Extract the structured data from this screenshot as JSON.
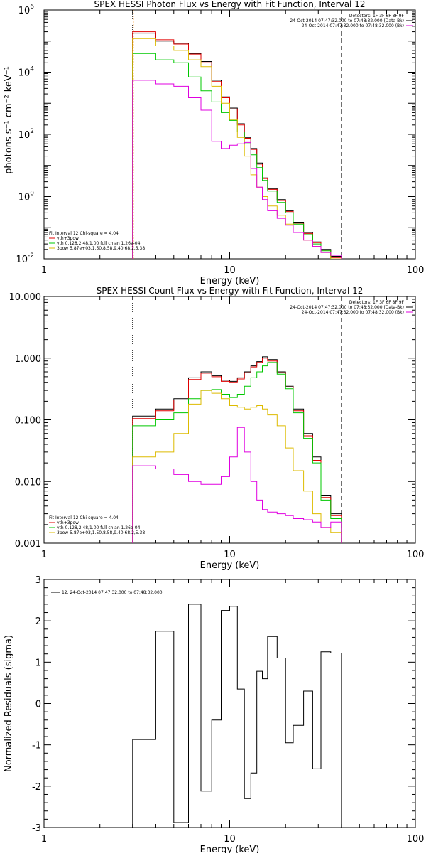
{
  "chart_data": [
    {
      "type": "line",
      "title": "SPEX HESSI Photon Flux vs Energy with Fit Function, Interval 12",
      "xlabel": "Energy (keV)",
      "ylabel": "photons s⁻¹ cm⁻² keV⁻¹",
      "xscale": "log",
      "yscale": "log",
      "xlim": [
        1,
        100
      ],
      "ylim": [
        0.01,
        1000000
      ],
      "xticks": [
        {
          "v": 1,
          "label": "1"
        },
        {
          "v": 10,
          "label": "10"
        },
        {
          "v": 100,
          "label": "100"
        }
      ],
      "yticks": [
        {
          "v": 0.01,
          "base": "10",
          "exp": "-2"
        },
        {
          "v": 1,
          "base": "10",
          "exp": "0"
        },
        {
          "v": 100,
          "base": "10",
          "exp": "2"
        },
        {
          "v": 10000,
          "base": "10",
          "exp": "4"
        },
        {
          "v": 1000000,
          "base": "10",
          "exp": "6"
        }
      ],
      "vlines": [
        {
          "x": 3,
          "style": "dotted"
        },
        {
          "x": 3,
          "style": "orange"
        },
        {
          "x": 40,
          "style": "dashed"
        }
      ],
      "legend_top": [
        "Detectors: 1F 3F 6F 8F 9F",
        "24-Oct-2014 07:47:32.000 to 07:48:32.000 (Data-Bk)",
        "24-Oct-2014 07:47:32.000 to 07:48:32.000 (Bk)"
      ],
      "legend_bottom": [
        "Fit Interval 12   Chi-square = 4.04",
        "vth+3pow",
        "vth 0.128,2.48,1.00  full chian 1.26e-04",
        "3pow  5.87e+03,1.50,8.58,9.40,68.2,5.38"
      ],
      "edges": [
        3,
        4,
        5,
        6,
        7,
        8,
        9,
        10,
        11,
        12,
        13,
        14,
        15,
        16,
        18,
        20,
        22,
        25,
        28,
        31,
        35,
        40
      ],
      "series": [
        {
          "name": "Data-Bk",
          "color": "#000000",
          "values": [
            180000,
            100000,
            85000,
            40000,
            22000,
            5500,
            1600,
            700,
            220,
            80,
            35,
            12,
            4,
            1.8,
            0.8,
            0.35,
            0.15,
            0.07,
            0.035,
            0.02,
            0.012
          ]
        },
        {
          "name": "vth+3pow",
          "color": "#e00000",
          "values": [
            200000,
            110000,
            80000,
            38000,
            20000,
            5000,
            1500,
            650,
            200,
            75,
            33,
            11,
            3.8,
            1.7,
            0.75,
            0.33,
            0.14,
            0.065,
            0.033,
            0.019,
            0.011
          ]
        },
        {
          "name": "vth",
          "color": "#00c800",
          "values": [
            40000,
            25000,
            20000,
            7000,
            2500,
            1100,
            500,
            280,
            120,
            50,
            22,
            8.5,
            3.3,
            1.5,
            0.65,
            0.3,
            0.13,
            0.06,
            0.03,
            0.018,
            0.01
          ]
        },
        {
          "name": "3pow",
          "color": "#ddbb00",
          "values": [
            120000,
            70000,
            50000,
            25000,
            15000,
            3500,
            1000,
            300,
            80,
            20,
            5,
            2,
            1,
            0.5,
            0.25,
            0.13,
            0.07,
            0.04,
            0.025,
            0.016,
            0.01
          ]
        },
        {
          "name": "Bk",
          "color": "#e000e0",
          "values": [
            5500,
            4200,
            3500,
            1500,
            600,
            60,
            35,
            45,
            50,
            55,
            8,
            2,
            0.8,
            0.35,
            0.2,
            0.12,
            0.07,
            0.04,
            0.025,
            0.016,
            0.013
          ]
        }
      ]
    },
    {
      "type": "line",
      "title": "SPEX HESSI Count Flux vs Energy with Fit Function, Interval 12",
      "xlabel": "Energy (keV)",
      "ylabel": "",
      "xscale": "log",
      "yscale": "log",
      "xlim": [
        1,
        100
      ],
      "ylim": [
        0.001,
        10
      ],
      "xticks": [
        {
          "v": 1,
          "label": "1"
        },
        {
          "v": 10,
          "label": "10"
        },
        {
          "v": 100,
          "label": "100"
        }
      ],
      "yticks": [
        {
          "v": 0.001,
          "label": "0.001"
        },
        {
          "v": 0.01,
          "label": "0.010"
        },
        {
          "v": 0.1,
          "label": "0.100"
        },
        {
          "v": 1,
          "label": "1.000"
        },
        {
          "v": 10,
          "label": "10.000"
        }
      ],
      "vlines": [
        {
          "x": 3,
          "style": "dotted"
        },
        {
          "x": 40,
          "style": "dashed"
        }
      ],
      "legend_top": [
        "Detectors: 1F 3F 6F 8F 9F",
        "24-Oct-2014 07:47:32.000 to 07:48:32.000 (Data-Bk)",
        "24-Oct-2014 07:47:32.000 to 07:48:32.000 (Bk)"
      ],
      "legend_bottom": [
        "Fit Interval 12   Chi-square = 4.04",
        "vth+3pow",
        "vth 0.128,2.48,1.00  full chian 1.26e-04",
        "3pow  5.87e+03,1.50,8.58,9.40,68.2,5.38"
      ],
      "edges": [
        3,
        4,
        5,
        6,
        7,
        8,
        9,
        10,
        11,
        12,
        13,
        14,
        15,
        16,
        18,
        20,
        22,
        25,
        28,
        31,
        35,
        40
      ],
      "series": [
        {
          "name": "Data-Bk",
          "color": "#000000",
          "values": [
            0.115,
            0.15,
            0.22,
            0.48,
            0.6,
            0.52,
            0.44,
            0.42,
            0.48,
            0.6,
            0.75,
            0.88,
            1.05,
            0.95,
            0.6,
            0.35,
            0.15,
            0.06,
            0.025,
            0.006,
            0.003
          ]
        },
        {
          "name": "vth+3pow",
          "color": "#e00000",
          "values": [
            0.105,
            0.14,
            0.21,
            0.45,
            0.57,
            0.5,
            0.42,
            0.4,
            0.46,
            0.58,
            0.72,
            0.85,
            1.0,
            0.9,
            0.58,
            0.34,
            0.14,
            0.055,
            0.022,
            0.0055,
            0.0028
          ]
        },
        {
          "name": "vth",
          "color": "#00c800",
          "values": [
            0.08,
            0.1,
            0.13,
            0.22,
            0.3,
            0.31,
            0.26,
            0.23,
            0.26,
            0.35,
            0.48,
            0.6,
            0.75,
            0.85,
            0.55,
            0.32,
            0.13,
            0.05,
            0.02,
            0.005,
            0.0025
          ]
        },
        {
          "name": "3pow",
          "color": "#ddbb00",
          "values": [
            0.025,
            0.03,
            0.06,
            0.18,
            0.3,
            0.27,
            0.22,
            0.17,
            0.16,
            0.15,
            0.16,
            0.17,
            0.15,
            0.12,
            0.08,
            0.035,
            0.015,
            0.007,
            0.003,
            0.0018,
            0.0015
          ]
        },
        {
          "name": "Bk",
          "color": "#e000e0",
          "values": [
            0.018,
            0.016,
            0.013,
            0.01,
            0.009,
            0.009,
            0.012,
            0.025,
            0.075,
            0.03,
            0.01,
            0.005,
            0.0035,
            0.0032,
            0.003,
            0.0028,
            0.0025,
            0.0024,
            0.0022,
            0.0018,
            0.0022
          ]
        }
      ]
    },
    {
      "type": "line",
      "title": "",
      "xlabel": "Energy (keV)",
      "ylabel": "Normalized Residuals (sigma)",
      "xscale": "log",
      "yscale": "linear",
      "xlim": [
        1,
        100
      ],
      "ylim": [
        -3,
        3
      ],
      "xticks": [
        {
          "v": 1,
          "label": "1"
        },
        {
          "v": 10,
          "label": "10"
        },
        {
          "v": 100,
          "label": "100"
        }
      ],
      "yticks": [
        {
          "v": -3,
          "label": "-3"
        },
        {
          "v": -2,
          "label": "-2"
        },
        {
          "v": -1,
          "label": "-1"
        },
        {
          "v": 0,
          "label": "0"
        },
        {
          "v": 1,
          "label": "1"
        },
        {
          "v": 2,
          "label": "2"
        },
        {
          "v": 3,
          "label": "3"
        }
      ],
      "legend_top": [
        "12. 24-Oct-2014 07:47:32.000 to 07:48:32.000"
      ],
      "edges": [
        3,
        4,
        5,
        6,
        7,
        8,
        9,
        10,
        11,
        12,
        13,
        14,
        15,
        16,
        18,
        20,
        22,
        25,
        28,
        31,
        35,
        40
      ],
      "series": [
        {
          "name": "",
          "color": "#000000",
          "values": [
            -0.87,
            1.75,
            -2.88,
            2.4,
            -2.12,
            -0.4,
            2.25,
            2.35,
            0.35,
            -2.3,
            -1.68,
            0.78,
            0.6,
            1.62,
            1.1,
            -0.95,
            -0.53,
            0.3,
            -1.58,
            1.25,
            1.22
          ]
        }
      ]
    }
  ]
}
